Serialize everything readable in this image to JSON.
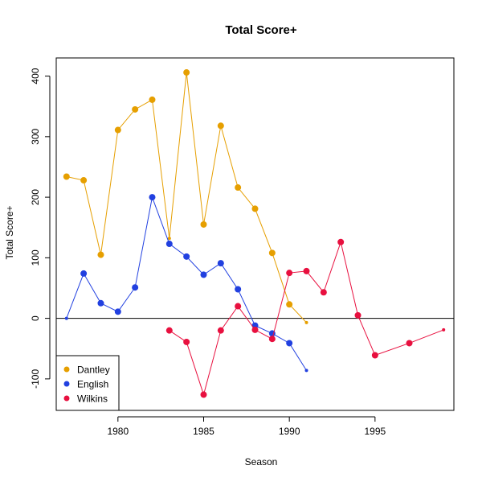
{
  "chart_data": {
    "type": "line",
    "title": "Total Score+",
    "xlabel": "Season",
    "ylabel": "Total Score+",
    "xlim": [
      1976.4,
      1999.6
    ],
    "ylim": [
      -152,
      430
    ],
    "x_ticks": [
      1980,
      1985,
      1990,
      1995
    ],
    "y_ticks": [
      -100,
      0,
      100,
      200,
      300,
      400
    ],
    "reference_line_y": 0,
    "legend_position": "bottom-left",
    "series": [
      {
        "name": "Dantley",
        "color": "#E69F00",
        "points": [
          {
            "x": 1977,
            "y": 234,
            "size": "large"
          },
          {
            "x": 1978,
            "y": 228,
            "size": "large"
          },
          {
            "x": 1979,
            "y": 105,
            "size": "large"
          },
          {
            "x": 1980,
            "y": 311,
            "size": "large"
          },
          {
            "x": 1981,
            "y": 345,
            "size": "large"
          },
          {
            "x": 1982,
            "y": 361,
            "size": "large"
          },
          {
            "x": 1983,
            "y": 132,
            "size": "small"
          },
          {
            "x": 1984,
            "y": 406,
            "size": "large"
          },
          {
            "x": 1985,
            "y": 155,
            "size": "large"
          },
          {
            "x": 1986,
            "y": 318,
            "size": "large"
          },
          {
            "x": 1987,
            "y": 216,
            "size": "large"
          },
          {
            "x": 1988,
            "y": 181,
            "size": "large"
          },
          {
            "x": 1989,
            "y": 108,
            "size": "large"
          },
          {
            "x": 1990,
            "y": 23,
            "size": "large"
          },
          {
            "x": 1991,
            "y": -7,
            "size": "small"
          }
        ]
      },
      {
        "name": "English",
        "color": "#2140E0",
        "points": [
          {
            "x": 1977,
            "y": 0,
            "size": "small"
          },
          {
            "x": 1978,
            "y": 74,
            "size": "large"
          },
          {
            "x": 1979,
            "y": 25,
            "size": "large"
          },
          {
            "x": 1980,
            "y": 11,
            "size": "large"
          },
          {
            "x": 1981,
            "y": 51,
            "size": "large"
          },
          {
            "x": 1982,
            "y": 200,
            "size": "large"
          },
          {
            "x": 1983,
            "y": 123,
            "size": "large"
          },
          {
            "x": 1984,
            "y": 102,
            "size": "large"
          },
          {
            "x": 1985,
            "y": 72,
            "size": "large"
          },
          {
            "x": 1986,
            "y": 91,
            "size": "large"
          },
          {
            "x": 1987,
            "y": 48,
            "size": "large"
          },
          {
            "x": 1988,
            "y": -12,
            "size": "large"
          },
          {
            "x": 1989,
            "y": -25,
            "size": "large"
          },
          {
            "x": 1990,
            "y": -41,
            "size": "large"
          },
          {
            "x": 1991,
            "y": -86,
            "size": "small"
          }
        ]
      },
      {
        "name": "Wilkins",
        "color": "#E8103F",
        "points": [
          {
            "x": 1983,
            "y": -20,
            "size": "large"
          },
          {
            "x": 1984,
            "y": -39,
            "size": "large"
          },
          {
            "x": 1985,
            "y": -126,
            "size": "large"
          },
          {
            "x": 1986,
            "y": -20,
            "size": "large"
          },
          {
            "x": 1987,
            "y": 20,
            "size": "large"
          },
          {
            "x": 1988,
            "y": -19,
            "size": "large"
          },
          {
            "x": 1989,
            "y": -34,
            "size": "large"
          },
          {
            "x": 1990,
            "y": 75,
            "size": "large"
          },
          {
            "x": 1991,
            "y": 78,
            "size": "large"
          },
          {
            "x": 1992,
            "y": 43,
            "size": "large"
          },
          {
            "x": 1993,
            "y": 126,
            "size": "large"
          },
          {
            "x": 1994,
            "y": 5,
            "size": "large"
          },
          {
            "x": 1995,
            "y": -61,
            "size": "large"
          },
          {
            "x": 1997,
            "y": -41,
            "size": "large"
          },
          {
            "x": 1999,
            "y": -19,
            "size": "small"
          }
        ]
      }
    ]
  }
}
